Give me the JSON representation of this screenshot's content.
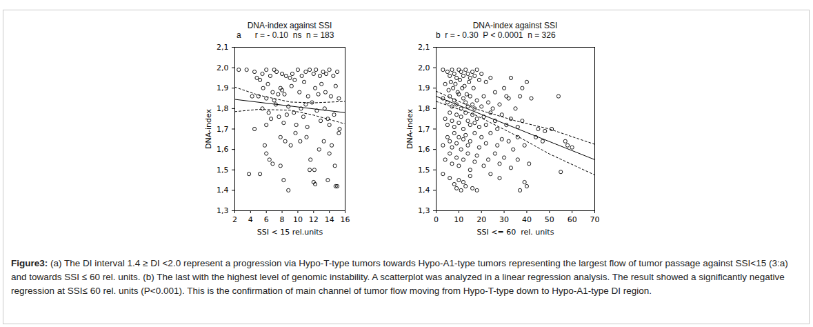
{
  "chart_data": [
    {
      "type": "scatter",
      "title": "DNA-index against SSI",
      "annotation": "a      r = - 0.10  ns  n = 183",
      "x_label": "SSI < 15 rel.units",
      "y_label": "DNA-index",
      "xlim": [
        2,
        16
      ],
      "xticks": [
        2,
        4,
        6,
        8,
        10,
        12,
        14,
        16
      ],
      "ylim": [
        1.3,
        2.1
      ],
      "yticks": [
        {
          "value": 1.3,
          "label": "1,3"
        },
        {
          "value": 1.4,
          "label": "1,4"
        },
        {
          "value": 1.5,
          "label": "1,5"
        },
        {
          "value": 1.6,
          "label": "1,6"
        },
        {
          "value": 1.7,
          "label": "1,7"
        },
        {
          "value": 1.8,
          "label": "1,8"
        },
        {
          "value": 1.9,
          "label": "1,9"
        },
        {
          "value": 2.0,
          "label": "2,0"
        },
        {
          "value": 2.1,
          "label": "2,1"
        }
      ],
      "grid": false,
      "color": "#000000",
      "series": [
        {
          "type": "scatter",
          "marker": "circle",
          "color": "#000000",
          "x": [
            2.5,
            3.5,
            4.5,
            5.5,
            6,
            6.5,
            7,
            7.3,
            8,
            8.5,
            9,
            9.3,
            9.6,
            10,
            10.5,
            11,
            11.5,
            12,
            12.3,
            12.8,
            13.2,
            13.6,
            14,
            14.5,
            15,
            4.2,
            4.8,
            5.2,
            5.6,
            6.2,
            6.8,
            7.5,
            7.8,
            8.3,
            9.2,
            10.2,
            10.8,
            11.3,
            12.2,
            12.6,
            13,
            13.5,
            14.2,
            14.8,
            15.2,
            5,
            6,
            7,
            8,
            4.5,
            5.5,
            6.3,
            6.6,
            7.2,
            7.6,
            8.2,
            8.8,
            9.5,
            9.8,
            10.4,
            10.7,
            11.2,
            11.8,
            12.4,
            12.9,
            13.4,
            14,
            14.6,
            15.3,
            6,
            8.6,
            11,
            13.8,
            5.8,
            6,
            6.4,
            6.8,
            7.8,
            8.4,
            9.1,
            9.7,
            10.3,
            11.1,
            11.6,
            12.1,
            12.7,
            13.3,
            14,
            14.7,
            15.2,
            7.8,
            14.3,
            3.8,
            5.2,
            8.2,
            8.8,
            11.5,
            12,
            12.2,
            13.8,
            14.8,
            15
          ],
          "values": [
            1.99,
            1.99,
            1.98,
            1.97,
            1.99,
            1.96,
            1.99,
            1.98,
            1.97,
            1.96,
            1.95,
            1.97,
            1.94,
            1.99,
            1.96,
            1.98,
            1.99,
            1.97,
            1.99,
            1.96,
            1.98,
            1.97,
            1.99,
            1.96,
            1.98,
            1.86,
            1.95,
            1.94,
            1.9,
            1.92,
            1.88,
            1.87,
            1.9,
            1.87,
            1.91,
            1.88,
            1.93,
            1.86,
            1.9,
            1.87,
            1.92,
            1.88,
            1.86,
            1.91,
            1.85,
            1.86,
            1.85,
            1.84,
            1.89,
            1.7,
            1.8,
            1.78,
            1.75,
            1.82,
            1.76,
            1.73,
            1.81,
            1.78,
            1.72,
            1.8,
            1.76,
            1.71,
            1.83,
            1.79,
            1.74,
            1.8,
            1.72,
            1.77,
            1.7,
            1.72,
            1.77,
            1.82,
            1.75,
            1.62,
            1.58,
            1.55,
            1.53,
            1.66,
            1.64,
            1.62,
            1.68,
            1.64,
            1.66,
            1.55,
            1.5,
            1.6,
            1.64,
            1.58,
            1.52,
            1.68,
            1.52,
            1.62,
            1.48,
            1.48,
            1.45,
            1.4,
            1.5,
            1.44,
            1.43,
            1.45,
            1.42,
            1.42
          ]
        },
        {
          "type": "line",
          "line_style": "solid",
          "color": "#000000",
          "x": [
            2,
            16
          ],
          "values": [
            1.845,
            1.78
          ]
        },
        {
          "type": "line",
          "line_style": "dashed",
          "color": "#000000",
          "x": [
            2,
            5,
            9,
            12,
            16
          ],
          "values": [
            1.905,
            1.866,
            1.832,
            1.828,
            1.835
          ]
        },
        {
          "type": "line",
          "line_style": "dashed",
          "color": "#000000",
          "x": [
            2,
            5,
            9,
            12,
            16
          ],
          "values": [
            1.785,
            1.796,
            1.792,
            1.768,
            1.725
          ]
        }
      ]
    },
    {
      "type": "scatter",
      "title": "DNA-index against SSI",
      "annotation": "b  r = - 0.30  P < 0.0001  n = 326",
      "x_label": "SSI <= 60  rel. units",
      "y_label": "DNA-index",
      "xlim": [
        0,
        70
      ],
      "xticks": [
        0,
        10,
        20,
        30,
        40,
        50,
        60,
        70
      ],
      "ylim": [
        1.3,
        2.1
      ],
      "yticks": [
        {
          "value": 1.3,
          "label": "1,3"
        },
        {
          "value": 1.4,
          "label": "1,4"
        },
        {
          "value": 1.5,
          "label": "1,5"
        },
        {
          "value": 1.6,
          "label": "1,6"
        },
        {
          "value": 1.7,
          "label": "1,7"
        },
        {
          "value": 1.8,
          "label": "1,8"
        },
        {
          "value": 1.9,
          "label": "1,9"
        },
        {
          "value": 2.0,
          "label": "2,0"
        },
        {
          "value": 2.1,
          "label": "2,1"
        }
      ],
      "grid": false,
      "color": "#000000",
      "series": [
        {
          "type": "scatter",
          "marker": "circle",
          "color": "#000000",
          "x": [
            3,
            5,
            6,
            7,
            8,
            9,
            10,
            11,
            12,
            13,
            14,
            15,
            16,
            17,
            18,
            19,
            20,
            6.5,
            8.5,
            10.5,
            12.5,
            14.5,
            16.5,
            7.5,
            9.5,
            11.5,
            13.5,
            5.5,
            4,
            22,
            24,
            26,
            30,
            31,
            33,
            38,
            37,
            40,
            3,
            5,
            6,
            7,
            8,
            9,
            10,
            11,
            12,
            13,
            14,
            15,
            16,
            17,
            18,
            20,
            21,
            23,
            25,
            28,
            32,
            35,
            42,
            54,
            4,
            5,
            6,
            7,
            8,
            9,
            10,
            11,
            12,
            13,
            14,
            15,
            16,
            17,
            18,
            19,
            21,
            22,
            24,
            26,
            27,
            29,
            31,
            33,
            36,
            38,
            45,
            48,
            51,
            3,
            5,
            6,
            7,
            8,
            9,
            10,
            11,
            12,
            13,
            14,
            15,
            17,
            19,
            20,
            22,
            24,
            27,
            29,
            32,
            34,
            36,
            39,
            44,
            47,
            57,
            58,
            60,
            4,
            6,
            7,
            9,
            10,
            12,
            14,
            15,
            17,
            18,
            21,
            23,
            26,
            28,
            30,
            33,
            36,
            41,
            55,
            3,
            6,
            8,
            9,
            10,
            11,
            12,
            13,
            15,
            16,
            18,
            24,
            28,
            37,
            39,
            40
          ],
          "values": [
            1.99,
            1.98,
            1.96,
            1.99,
            1.97,
            1.95,
            1.99,
            1.98,
            1.96,
            1.99,
            1.97,
            1.95,
            1.98,
            1.96,
            1.99,
            1.94,
            1.97,
            1.93,
            1.92,
            1.94,
            1.91,
            1.93,
            1.9,
            1.9,
            1.88,
            1.9,
            1.87,
            1.89,
            1.92,
            1.93,
            1.95,
            1.88,
            1.9,
            1.86,
            1.95,
            1.9,
            1.86,
            1.93,
            1.85,
            1.83,
            1.86,
            1.81,
            1.84,
            1.82,
            1.87,
            1.8,
            1.85,
            1.83,
            1.81,
            1.86,
            1.82,
            1.8,
            1.84,
            1.81,
            1.86,
            1.83,
            1.8,
            1.82,
            1.85,
            1.8,
            1.85,
            1.86,
            1.75,
            1.72,
            1.78,
            1.74,
            1.71,
            1.77,
            1.73,
            1.76,
            1.7,
            1.78,
            1.74,
            1.72,
            1.77,
            1.73,
            1.75,
            1.71,
            1.76,
            1.72,
            1.78,
            1.74,
            1.7,
            1.77,
            1.72,
            1.75,
            1.71,
            1.74,
            1.7,
            1.69,
            1.7,
            1.62,
            1.66,
            1.64,
            1.61,
            1.68,
            1.63,
            1.66,
            1.6,
            1.65,
            1.67,
            1.62,
            1.64,
            1.68,
            1.61,
            1.66,
            1.63,
            1.68,
            1.62,
            1.65,
            1.64,
            1.6,
            1.66,
            1.62,
            1.66,
            1.64,
            1.64,
            1.62,
            1.61,
            1.55,
            1.58,
            1.53,
            1.56,
            1.52,
            1.55,
            1.58,
            1.5,
            1.54,
            1.57,
            1.52,
            1.55,
            1.58,
            1.53,
            1.56,
            1.51,
            1.55,
            1.53,
            1.49,
            1.48,
            1.46,
            1.43,
            1.41,
            1.45,
            1.4,
            1.44,
            1.42,
            1.47,
            1.41,
            1.4,
            1.48,
            1.46,
            1.4,
            1.44,
            1.42
          ]
        },
        {
          "type": "line",
          "line_style": "solid",
          "color": "#000000",
          "x": [
            0,
            70
          ],
          "values": [
            1.86,
            1.55
          ]
        },
        {
          "type": "line",
          "line_style": "dashed",
          "color": "#000000",
          "x": [
            0,
            17,
            35,
            50,
            70
          ],
          "values": [
            1.885,
            1.8,
            1.74,
            1.7,
            1.625
          ]
        },
        {
          "type": "line",
          "line_style": "dashed",
          "color": "#000000",
          "x": [
            0,
            17,
            35,
            50,
            70
          ],
          "values": [
            1.835,
            1.77,
            1.67,
            1.578,
            1.475
          ]
        }
      ]
    }
  ],
  "caption": {
    "label": "Figure3:",
    "text": " (a) The DI interval 1.4 ≥ DI <2.0 represent a progression via Hypo-T-type tumors towards Hypo-A1-type tumors representing the largest flow of tumor passage against SSI<15 (3:a) and towards SSI ≤ 60 rel. units. (b) The last with the highest level of genomic instability. A scatterplot was analyzed in a linear regression analysis. The result showed a significantly negative regression at SSI≤ 60 rel. units (P<0.001). This is the confirmation of main channel of tumor flow moving from Hypo-T-type down to Hypo-A1-type DI region."
  }
}
